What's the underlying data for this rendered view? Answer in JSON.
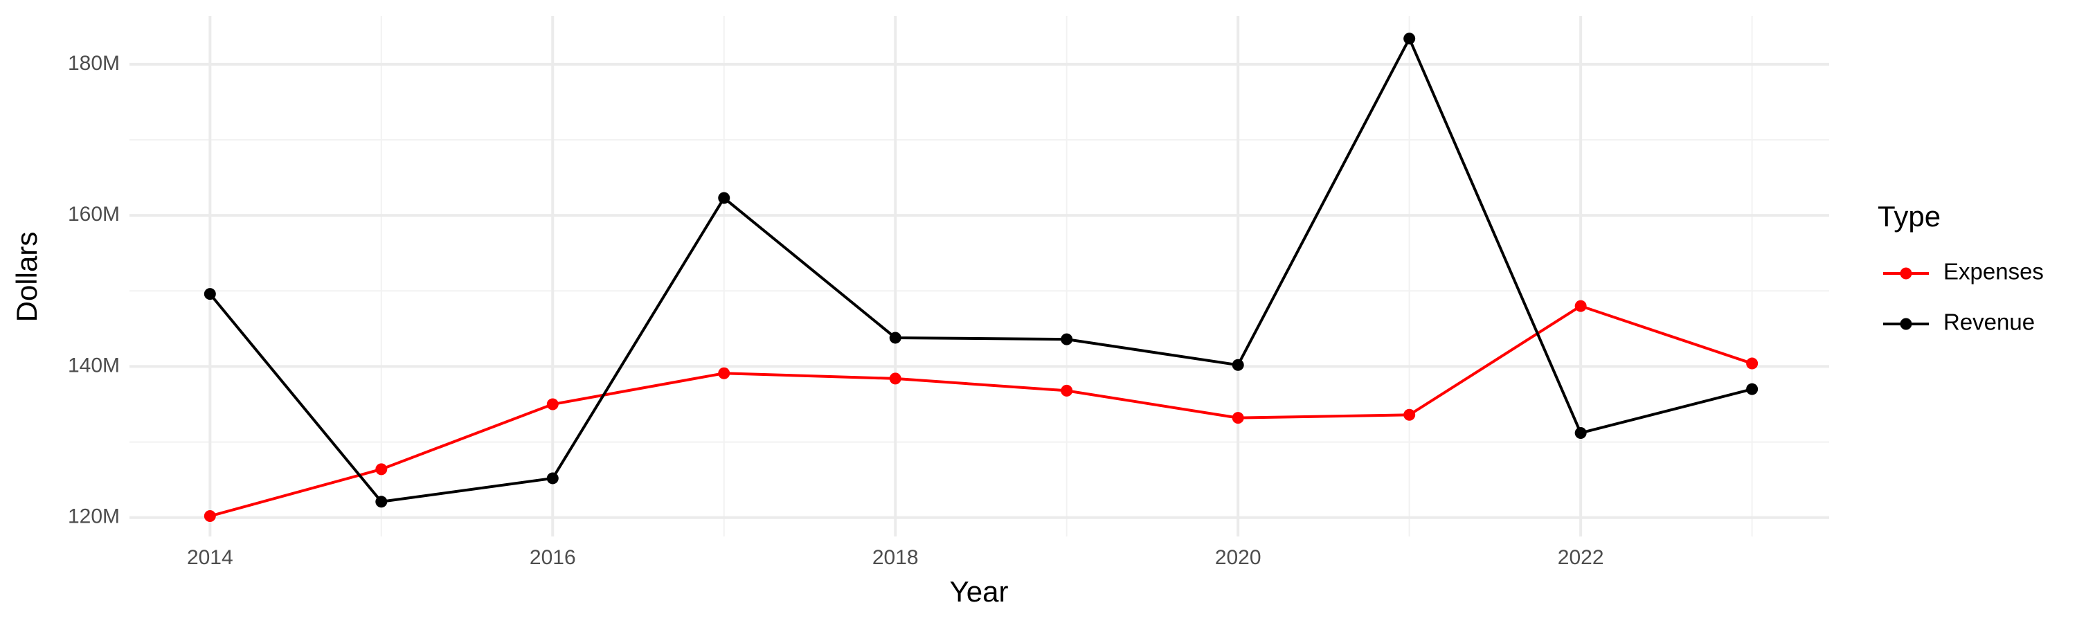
{
  "chart_data": {
    "type": "line",
    "x_label": "Year",
    "y_label": "Dollars",
    "legend_title": "Type",
    "x": [
      2014,
      2015,
      2016,
      2017,
      2018,
      2019,
      2020,
      2021,
      2022,
      2023
    ],
    "series": [
      {
        "name": "Expenses",
        "color": "#ff0000",
        "values": [
          120200000,
          126400000,
          135000000,
          139100000,
          138400000,
          136800000,
          133200000,
          133600000,
          148000000,
          140400000
        ]
      },
      {
        "name": "Revenue",
        "color": "#000000",
        "values": [
          149600000,
          122100000,
          125200000,
          162300000,
          143800000,
          143600000,
          140200000,
          183400000,
          131200000,
          137000000
        ]
      }
    ],
    "xlim": [
      2013.53,
      2023.45
    ],
    "xticks": [
      2014,
      2016,
      2018,
      2020,
      2022
    ],
    "ylim": [
      117500000,
      186400000
    ],
    "yticks": [
      {
        "value": 120000000,
        "label": "120M"
      },
      {
        "value": 140000000,
        "label": "140M"
      },
      {
        "value": 160000000,
        "label": "160M"
      },
      {
        "value": 180000000,
        "label": "180M"
      }
    ],
    "grid": true,
    "legend_position": "right"
  }
}
